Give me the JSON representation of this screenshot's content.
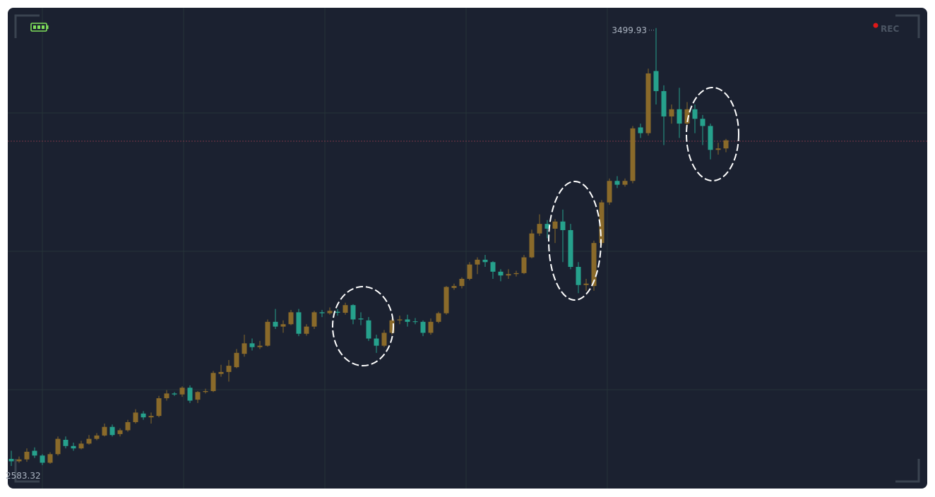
{
  "recording_label": "REC",
  "chart_data": {
    "type": "candlestick",
    "up_color": "#8a6a2a",
    "down_color": "#26a18c",
    "ylim": [
      2536,
      3541
    ],
    "open": [
      2598,
      2593,
      2597,
      2615,
      2605,
      2590,
      2608,
      2638,
      2625,
      2620,
      2630,
      2640,
      2647,
      2665,
      2650,
      2658,
      2675,
      2693,
      2685,
      2688,
      2725,
      2735,
      2733,
      2747,
      2722,
      2738,
      2740,
      2776,
      2780,
      2790,
      2818,
      2840,
      2832,
      2835,
      2885,
      2875,
      2880,
      2905,
      2860,
      2875,
      2905,
      2903,
      2906,
      2904,
      2920,
      2892,
      2888,
      2850,
      2835,
      2862,
      2888,
      2890,
      2886,
      2885,
      2862,
      2885,
      2903,
      2956,
      2960,
      2975,
      3005,
      3015,
      3010,
      2990,
      2982,
      2985,
      2987,
      3020,
      3070,
      3090,
      3080,
      3095,
      3077,
      3000,
      2962,
      2960,
      3050,
      3135,
      3180,
      3172,
      3180,
      3292,
      3280,
      3410,
      3368,
      3315,
      3330,
      3300,
      3330,
      3310,
      3295,
      3245,
      3248
    ],
    "close": [
      2593,
      2597,
      2613,
      2605,
      2590,
      2608,
      2640,
      2625,
      2620,
      2630,
      2640,
      2647,
      2665,
      2648,
      2658,
      2675,
      2695,
      2685,
      2688,
      2725,
      2735,
      2733,
      2747,
      2720,
      2738,
      2740,
      2778,
      2780,
      2793,
      2820,
      2840,
      2832,
      2835,
      2885,
      2875,
      2880,
      2905,
      2860,
      2875,
      2905,
      2903,
      2908,
      2904,
      2920,
      2890,
      2890,
      2850,
      2835,
      2862,
      2888,
      2890,
      2885,
      2885,
      2862,
      2885,
      2903,
      2958,
      2960,
      2975,
      3005,
      3015,
      3010,
      2990,
      2982,
      2985,
      2987,
      3020,
      3070,
      3090,
      3080,
      3095,
      3077,
      3000,
      2962,
      2965,
      3050,
      3135,
      3180,
      3172,
      3180,
      3290,
      3280,
      3405,
      3368,
      3315,
      3330,
      3300,
      3330,
      3310,
      3295,
      3245,
      3248,
      3265
    ],
    "high": [
      2615,
      2603,
      2620,
      2622,
      2608,
      2612,
      2645,
      2645,
      2632,
      2636,
      2648,
      2652,
      2672,
      2670,
      2662,
      2680,
      2702,
      2698,
      2695,
      2730,
      2742,
      2738,
      2750,
      2752,
      2740,
      2745,
      2782,
      2795,
      2805,
      2828,
      2858,
      2850,
      2845,
      2890,
      2912,
      2888,
      2910,
      2912,
      2880,
      2908,
      2910,
      2915,
      2912,
      2925,
      2922,
      2905,
      2895,
      2858,
      2868,
      2892,
      2898,
      2900,
      2893,
      2888,
      2892,
      2906,
      2960,
      2965,
      2978,
      3010,
      3020,
      3025,
      3012,
      2995,
      2995,
      2992,
      3025,
      3078,
      3110,
      3098,
      3100,
      3120,
      3090,
      3010,
      2975,
      3055,
      3140,
      3185,
      3190,
      3185,
      3295,
      3300,
      3415,
      3499.93,
      3380,
      3340,
      3375,
      3345,
      3340,
      3318,
      3300,
      3260,
      3268
    ],
    "low": [
      2583.32,
      2590,
      2592,
      2600,
      2585,
      2588,
      2605,
      2620,
      2615,
      2618,
      2628,
      2637,
      2645,
      2645,
      2645,
      2655,
      2672,
      2680,
      2672,
      2685,
      2720,
      2730,
      2728,
      2715,
      2715,
      2735,
      2738,
      2770,
      2760,
      2788,
      2812,
      2825,
      2828,
      2833,
      2870,
      2862,
      2878,
      2855,
      2856,
      2870,
      2895,
      2900,
      2898,
      2900,
      2880,
      2878,
      2845,
      2820,
      2832,
      2858,
      2880,
      2875,
      2880,
      2855,
      2858,
      2882,
      2900,
      2952,
      2955,
      2972,
      2985,
      3000,
      2975,
      2970,
      2975,
      2980,
      2985,
      3018,
      3065,
      3060,
      3050,
      3010,
      2995,
      2945,
      2950,
      2950,
      3045,
      3130,
      3165,
      3168,
      3175,
      3270,
      3275,
      3340,
      3255,
      3300,
      3270,
      3290,
      3280,
      3255,
      3225,
      3235,
      3240
    ]
  }
}
